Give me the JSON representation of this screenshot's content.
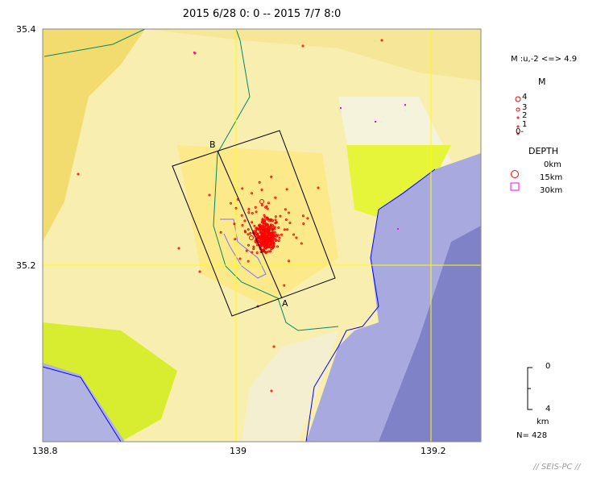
{
  "title": "2015 6/28 0: 0 -- 2015 7/7 8:0",
  "axes": {
    "lat_ticks": [
      "35.4",
      "35.2"
    ],
    "lon_ticks": [
      "138.8",
      "139",
      "139.2"
    ]
  },
  "section": {
    "start_label": "B",
    "end_label": "A"
  },
  "legend": {
    "mag_range": "M :u,-2 <=> 4.9",
    "mag_title": "M",
    "mag_labels": [
      "4",
      "3",
      "2",
      "1",
      "0-"
    ],
    "depth_title": "DEPTH",
    "depth_labels": [
      "0km",
      "15km",
      "30km"
    ]
  },
  "scale": {
    "top": "0",
    "bottom": "4",
    "unit": "km"
  },
  "count": "N= 428",
  "credit": "// SEIS-PC //",
  "colors": {
    "quake_shallow": "#ff0000",
    "quake_deep": "#ff00ff",
    "grid": "#ffff00",
    "sea": "#8888cc",
    "coast": "#0000ff",
    "border": "#008866"
  }
}
